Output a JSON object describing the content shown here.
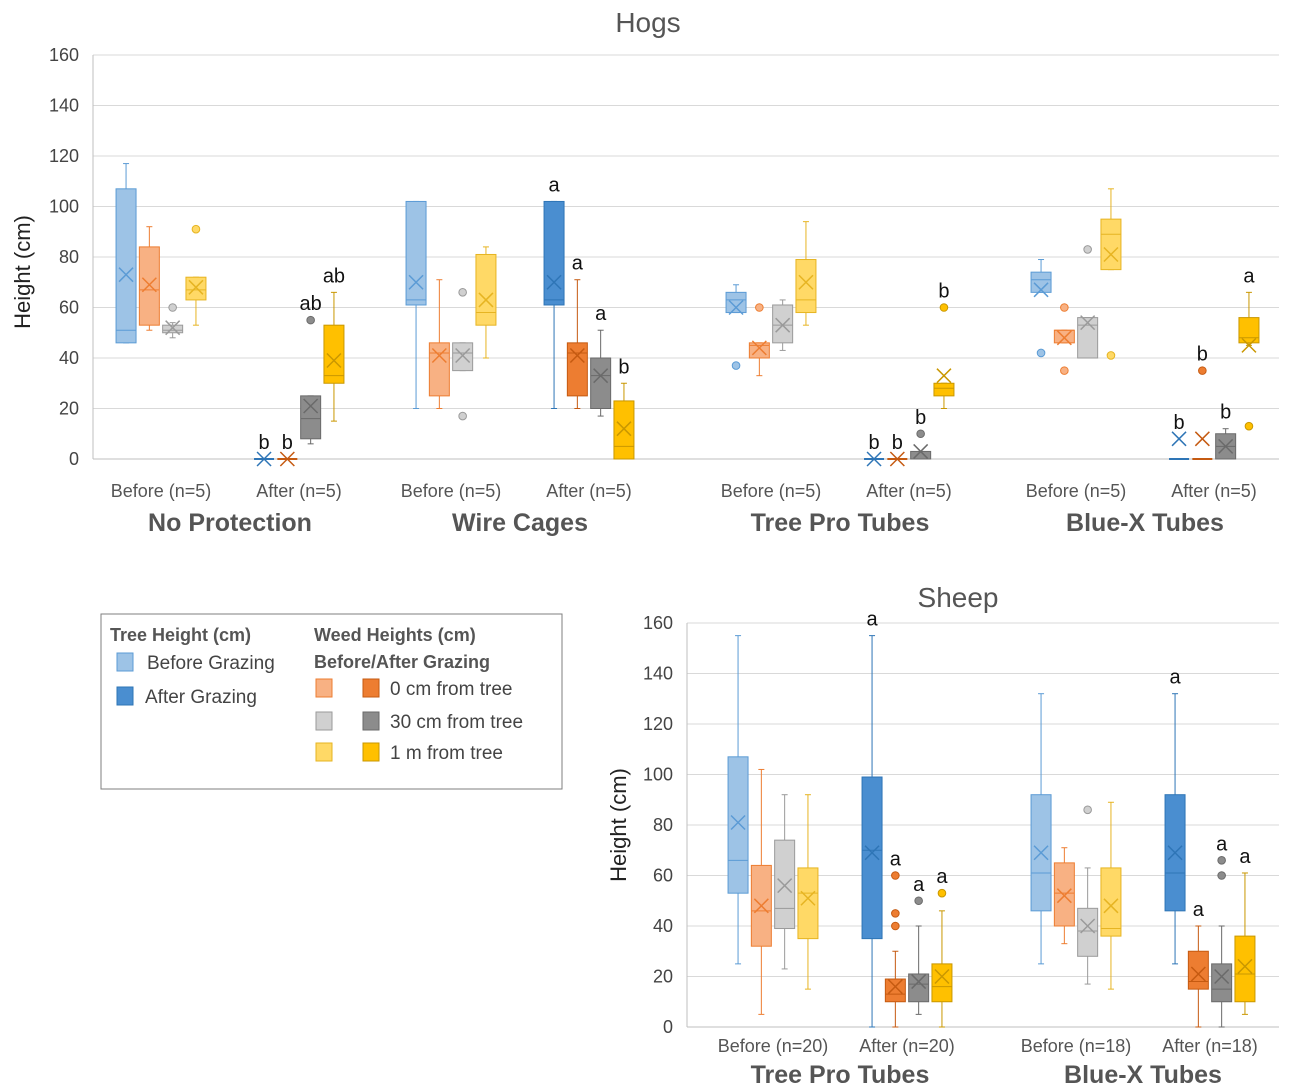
{
  "colors": {
    "before_tree": "#9DC3E6",
    "before_tree_edge": "#5B9BD5",
    "after_tree": "#4A8ED0",
    "after_tree_edge": "#2E75B6",
    "before_0cm": "#F8B183",
    "before_0cm_edge": "#ED7D31",
    "after_0cm": "#ED7D31",
    "after_0cm_edge": "#C55A11",
    "before_30cm": "#D0D0D0",
    "before_30cm_edge": "#9A9A9A",
    "after_30cm": "#8C8C8C",
    "after_30cm_edge": "#6A6A6A",
    "before_1m": "#FFD966",
    "before_1m_edge": "#E6B422",
    "after_1m": "#FFC000",
    "after_1m_edge": "#C99700",
    "grid": "#D9D9D9",
    "axis": "#BFBFBF"
  },
  "legend": {
    "tree_header": "Tree Height (cm)",
    "weed_header_1": "Weed Heights (cm)",
    "weed_header_2": "Before/After Grazing",
    "items": [
      {
        "label": "Before Grazing",
        "color": "before_tree"
      },
      {
        "label": "After Grazing",
        "color": "after_tree"
      },
      {
        "label": "0 cm from tree",
        "colors": [
          "before_0cm",
          "after_0cm"
        ]
      },
      {
        "label": "30 cm from tree",
        "colors": [
          "before_30cm",
          "after_30cm"
        ]
      },
      {
        "label": "1 m from tree",
        "colors": [
          "before_1m",
          "after_1m"
        ]
      }
    ]
  },
  "chart_data": [
    {
      "type": "box",
      "title": "Hogs",
      "ylabel": "Height (cm)",
      "ylim": [
        0,
        160
      ],
      "yticks": [
        0,
        20,
        40,
        60,
        80,
        100,
        120,
        140,
        160
      ],
      "grid": true,
      "groups": [
        {
          "name": "No Protection",
          "subgroups": [
            {
              "label": "Before (n=5)",
              "boxes": [
                {
                  "series": "before_tree",
                  "min": 46,
                  "q1": 46,
                  "median": 51,
                  "q3": 107,
                  "max": 117,
                  "mean": 73,
                  "outliers": []
                },
                {
                  "series": "before_0cm",
                  "min": 51,
                  "q1": 53,
                  "median": 67,
                  "q3": 84,
                  "max": 92,
                  "mean": 69,
                  "outliers": []
                },
                {
                  "series": "before_30cm",
                  "min": 48,
                  "q1": 50,
                  "median": 51,
                  "q3": 53,
                  "max": 54,
                  "mean": 52,
                  "outliers": [
                    60
                  ]
                },
                {
                  "series": "before_1m",
                  "min": 53,
                  "q1": 63,
                  "median": 67,
                  "q3": 72,
                  "max": 72,
                  "mean": 68,
                  "outliers": [
                    91
                  ]
                }
              ]
            },
            {
              "label": "After (n=5)",
              "boxes": [
                {
                  "series": "after_tree",
                  "min": 0,
                  "q1": 0,
                  "median": 0,
                  "q3": 0,
                  "max": 0,
                  "mean": 0,
                  "outliers": [],
                  "sig": "b"
                },
                {
                  "series": "after_0cm",
                  "min": 0,
                  "q1": 0,
                  "median": 0,
                  "q3": 0,
                  "max": 0,
                  "mean": 0,
                  "outliers": [],
                  "sig": "b"
                },
                {
                  "series": "after_30cm",
                  "min": 6,
                  "q1": 8,
                  "median": 16,
                  "q3": 25,
                  "max": 25,
                  "mean": 21,
                  "outliers": [
                    55
                  ],
                  "sig": "ab"
                },
                {
                  "series": "after_1m",
                  "min": 15,
                  "q1": 30,
                  "median": 33,
                  "q3": 53,
                  "max": 66,
                  "mean": 39,
                  "outliers": [],
                  "sig": "ab"
                }
              ]
            }
          ]
        },
        {
          "name": "Wire Cages",
          "subgroups": [
            {
              "label": "Before (n=5)",
              "boxes": [
                {
                  "series": "before_tree",
                  "min": 20,
                  "q1": 61,
                  "median": 63,
                  "q3": 102,
                  "max": 102,
                  "mean": 70,
                  "outliers": []
                },
                {
                  "series": "before_0cm",
                  "min": 20,
                  "q1": 25,
                  "median": 42,
                  "q3": 46,
                  "max": 71,
                  "mean": 41,
                  "outliers": []
                },
                {
                  "series": "before_30cm",
                  "min": 35,
                  "q1": 35,
                  "median": 42,
                  "q3": 46,
                  "max": 46,
                  "mean": 41,
                  "outliers": [
                    17,
                    66
                  ]
                },
                {
                  "series": "before_1m",
                  "min": 40,
                  "q1": 53,
                  "median": 58,
                  "q3": 81,
                  "max": 84,
                  "mean": 63,
                  "outliers": []
                }
              ]
            },
            {
              "label": "After (n=5)",
              "boxes": [
                {
                  "series": "after_tree",
                  "min": 20,
                  "q1": 61,
                  "median": 63,
                  "q3": 102,
                  "max": 102,
                  "mean": 70,
                  "outliers": [],
                  "sig": "a"
                },
                {
                  "series": "after_0cm",
                  "min": 20,
                  "q1": 25,
                  "median": 42,
                  "q3": 46,
                  "max": 71,
                  "mean": 41,
                  "outliers": [],
                  "sig": "a"
                },
                {
                  "series": "after_30cm",
                  "min": 17,
                  "q1": 20,
                  "median": 33,
                  "q3": 40,
                  "max": 51,
                  "mean": 33,
                  "outliers": [],
                  "sig": "a"
                },
                {
                  "series": "after_1m",
                  "min": 0,
                  "q1": 0,
                  "median": 5,
                  "q3": 23,
                  "max": 30,
                  "mean": 12,
                  "outliers": [],
                  "sig": "b"
                }
              ]
            }
          ]
        },
        {
          "name": "Tree Pro Tubes",
          "subgroups": [
            {
              "label": "Before (n=5)",
              "boxes": [
                {
                  "series": "before_tree",
                  "min": 58,
                  "q1": 58,
                  "median": 63,
                  "q3": 66,
                  "max": 69,
                  "mean": 60,
                  "outliers": [
                    37
                  ]
                },
                {
                  "series": "before_0cm",
                  "min": 33,
                  "q1": 40,
                  "median": 45,
                  "q3": 46,
                  "max": 46,
                  "mean": 44,
                  "outliers": [
                    60
                  ]
                },
                {
                  "series": "before_30cm",
                  "min": 43,
                  "q1": 46,
                  "median": 53,
                  "q3": 61,
                  "max": 63,
                  "mean": 53,
                  "outliers": []
                },
                {
                  "series": "before_1m",
                  "min": 53,
                  "q1": 58,
                  "median": 63,
                  "q3": 79,
                  "max": 94,
                  "mean": 70,
                  "outliers": []
                }
              ]
            },
            {
              "label": "After (n=5)",
              "boxes": [
                {
                  "series": "after_tree",
                  "min": 0,
                  "q1": 0,
                  "median": 0,
                  "q3": 0,
                  "max": 0,
                  "mean": 0,
                  "outliers": [],
                  "sig": "b"
                },
                {
                  "series": "after_0cm",
                  "min": 0,
                  "q1": 0,
                  "median": 0,
                  "q3": 0,
                  "max": 0,
                  "mean": 0,
                  "outliers": [],
                  "sig": "b"
                },
                {
                  "series": "after_30cm",
                  "min": 0,
                  "q1": 0,
                  "median": 0,
                  "q3": 3,
                  "max": 3,
                  "mean": 3,
                  "outliers": [
                    10
                  ],
                  "sig": "b"
                },
                {
                  "series": "after_1m",
                  "min": 20,
                  "q1": 25,
                  "median": 28,
                  "q3": 30,
                  "max": 30,
                  "mean": 33,
                  "outliers": [
                    60
                  ],
                  "sig": "b"
                }
              ]
            }
          ]
        },
        {
          "name": "Blue-X Tubes",
          "subgroups": [
            {
              "label": "Before (n=5)",
              "boxes": [
                {
                  "series": "before_tree",
                  "min": 66,
                  "q1": 66,
                  "median": 71,
                  "q3": 74,
                  "max": 79,
                  "mean": 67,
                  "outliers": [
                    42
                  ]
                },
                {
                  "series": "before_0cm",
                  "min": 46,
                  "q1": 46,
                  "median": 51,
                  "q3": 51,
                  "max": 51,
                  "mean": 48,
                  "outliers": [
                    35,
                    60
                  ]
                },
                {
                  "series": "before_30cm",
                  "min": 40,
                  "q1": 40,
                  "median": 53,
                  "q3": 56,
                  "max": 56,
                  "mean": 54,
                  "outliers": [
                    83
                  ]
                },
                {
                  "series": "before_1m",
                  "min": 75,
                  "q1": 75,
                  "median": 89,
                  "q3": 95,
                  "max": 107,
                  "mean": 81,
                  "outliers": [
                    41
                  ]
                }
              ]
            },
            {
              "label": "After (n=5)",
              "boxes": [
                {
                  "series": "after_tree",
                  "min": 0,
                  "q1": 0,
                  "median": 0,
                  "q3": 0,
                  "max": 0,
                  "mean": 8,
                  "outliers": [],
                  "sig": "b"
                },
                {
                  "series": "after_0cm",
                  "min": 0,
                  "q1": 0,
                  "median": 0,
                  "q3": 0,
                  "max": 0,
                  "mean": 8,
                  "outliers": [
                    35
                  ],
                  "sig": "b"
                },
                {
                  "series": "after_30cm",
                  "min": 0,
                  "q1": 0,
                  "median": 5,
                  "q3": 10,
                  "max": 12,
                  "mean": 5,
                  "outliers": [],
                  "sig": "b"
                },
                {
                  "series": "after_1m",
                  "min": 45,
                  "q1": 46,
                  "median": 48,
                  "q3": 56,
                  "max": 66,
                  "mean": 45,
                  "outliers": [
                    13
                  ],
                  "sig": "a"
                }
              ]
            }
          ]
        }
      ]
    },
    {
      "type": "box",
      "title": "Sheep",
      "ylabel": "Height (cm)",
      "ylim": [
        0,
        160
      ],
      "yticks": [
        0,
        20,
        40,
        60,
        80,
        100,
        120,
        140,
        160
      ],
      "grid": true,
      "groups": [
        {
          "name": "Tree Pro Tubes",
          "subgroups": [
            {
              "label": "Before (n=20)",
              "boxes": [
                {
                  "series": "before_tree",
                  "min": 25,
                  "q1": 53,
                  "median": 66,
                  "q3": 107,
                  "max": 155,
                  "mean": 81,
                  "outliers": []
                },
                {
                  "series": "before_0cm",
                  "min": 5,
                  "q1": 32,
                  "median": 46,
                  "q3": 64,
                  "max": 102,
                  "mean": 48,
                  "outliers": []
                },
                {
                  "series": "before_30cm",
                  "min": 23,
                  "q1": 39,
                  "median": 47,
                  "q3": 74,
                  "max": 92,
                  "mean": 56,
                  "outliers": []
                },
                {
                  "series": "before_1m",
                  "min": 15,
                  "q1": 35,
                  "median": 53,
                  "q3": 63,
                  "max": 92,
                  "mean": 51,
                  "outliers": []
                }
              ]
            },
            {
              "label": "After (n=20)",
              "boxes": [
                {
                  "series": "after_tree",
                  "min": 0,
                  "q1": 35,
                  "median": 70,
                  "q3": 99,
                  "max": 155,
                  "mean": 69,
                  "outliers": [],
                  "sig": "a"
                },
                {
                  "series": "after_0cm",
                  "min": 0,
                  "q1": 10,
                  "median": 13,
                  "q3": 19,
                  "max": 30,
                  "mean": 16,
                  "outliers": [
                    40,
                    45,
                    60
                  ],
                  "sig": "a"
                },
                {
                  "series": "after_30cm",
                  "min": 5,
                  "q1": 10,
                  "median": 17,
                  "q3": 21,
                  "max": 40,
                  "mean": 18,
                  "outliers": [
                    50
                  ],
                  "sig": "a"
                },
                {
                  "series": "after_1m",
                  "min": 0,
                  "q1": 10,
                  "median": 16,
                  "q3": 25,
                  "max": 46,
                  "mean": 20,
                  "outliers": [
                    53
                  ],
                  "sig": "a"
                }
              ]
            }
          ]
        },
        {
          "name": "Blue-X Tubes",
          "subgroups": [
            {
              "label": "Before (n=18)",
              "boxes": [
                {
                  "series": "before_tree",
                  "min": 25,
                  "q1": 46,
                  "median": 61,
                  "q3": 92,
                  "max": 132,
                  "mean": 69,
                  "outliers": []
                },
                {
                  "series": "before_0cm",
                  "min": 33,
                  "q1": 40,
                  "median": 53,
                  "q3": 65,
                  "max": 71,
                  "mean": 52,
                  "outliers": []
                },
                {
                  "series": "before_30cm",
                  "min": 17,
                  "q1": 28,
                  "median": 38,
                  "q3": 47,
                  "max": 63,
                  "mean": 40,
                  "outliers": [
                    86
                  ]
                },
                {
                  "series": "before_1m",
                  "min": 15,
                  "q1": 36,
                  "median": 39,
                  "q3": 63,
                  "max": 89,
                  "mean": 48,
                  "outliers": []
                }
              ]
            },
            {
              "label": "After (n=18)",
              "boxes": [
                {
                  "series": "after_tree",
                  "min": 25,
                  "q1": 46,
                  "median": 61,
                  "q3": 92,
                  "max": 132,
                  "mean": 69,
                  "outliers": [],
                  "sig": "a"
                },
                {
                  "series": "after_0cm",
                  "min": 0,
                  "q1": 15,
                  "median": 18,
                  "q3": 30,
                  "max": 40,
                  "mean": 21,
                  "outliers": [],
                  "sig": "a"
                },
                {
                  "series": "after_30cm",
                  "min": 0,
                  "q1": 10,
                  "median": 15,
                  "q3": 25,
                  "max": 40,
                  "mean": 20,
                  "outliers": [
                    60,
                    66
                  ],
                  "sig": "a"
                },
                {
                  "series": "after_1m",
                  "min": 5,
                  "q1": 10,
                  "median": 21,
                  "q3": 36,
                  "max": 61,
                  "mean": 24,
                  "outliers": [],
                  "sig": "a"
                }
              ]
            }
          ]
        }
      ]
    }
  ]
}
